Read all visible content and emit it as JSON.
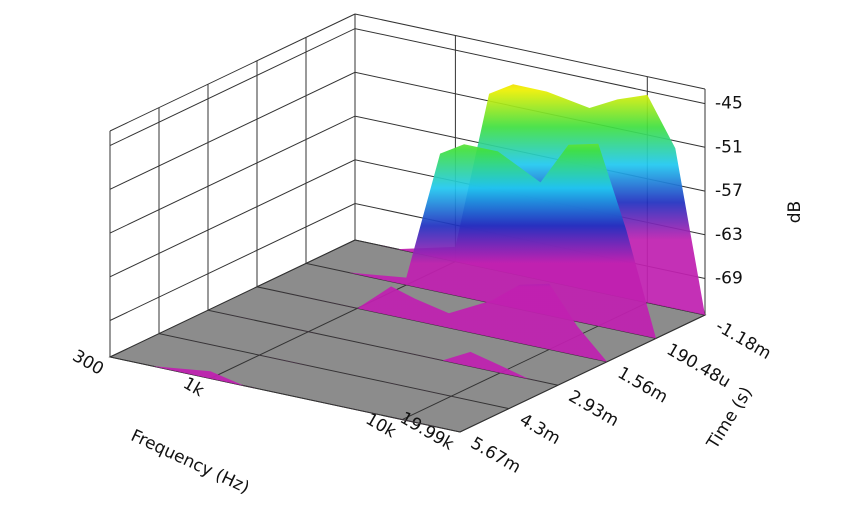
{
  "chart_data": {
    "type": "waterfall3d",
    "x_label": "Frequency (Hz)",
    "y_label": "Time (s)",
    "z_label": "dB",
    "xscale": "log",
    "xlim": [
      300,
      19990
    ],
    "xticks": [
      300,
      {
        "value": 1000,
        "label": "1k"
      },
      {
        "value": 10000,
        "label": "10k"
      },
      {
        "value": 19990,
        "label": "19.99k"
      }
    ],
    "ylim": [
      -0.00118,
      0.00567
    ],
    "yticks": [
      {
        "value": -0.00118,
        "label": "-1.18m"
      },
      {
        "value": 0.00019048,
        "label": "190.48u"
      },
      {
        "value": 0.00156,
        "label": "1.56m"
      },
      {
        "value": 0.00293,
        "label": "2.93m"
      },
      {
        "value": 0.0043,
        "label": "4.3m"
      },
      {
        "value": 0.00567,
        "label": "5.67m"
      }
    ],
    "zlim": [
      -74,
      -43
    ],
    "zticks": [
      -45,
      -51,
      -57,
      -63,
      -69
    ],
    "floor_color": "#8c8c8c",
    "colors": [
      "#c020b0",
      "#2030c0",
      "#20c8f0",
      "#40e040",
      "#f0f000",
      "#f08000",
      "#f00000"
    ],
    "x": [
      300,
      500,
      1000,
      1500,
      2000,
      3000,
      5000,
      7000,
      10000,
      14000,
      19990
    ],
    "slices": [
      {
        "t": -0.00118,
        "values": [
          -74,
          -74,
          -72,
          -50,
          -48,
          -48,
          -49,
          -47,
          -45.5,
          -52,
          -74
        ]
      },
      {
        "t": 0.00019048,
        "values": [
          -74,
          -74,
          -73,
          -55,
          -53,
          -53,
          -56,
          -50,
          -49,
          -60,
          -74
        ]
      },
      {
        "t": 0.00156,
        "values": [
          -74,
          -74,
          -74,
          -70,
          -71,
          -72,
          -69,
          -66,
          -65,
          -70,
          -74
        ]
      },
      {
        "t": 0.00293,
        "values": [
          -74,
          -74,
          -74,
          -74,
          -74,
          -74,
          -74,
          -72,
          -73,
          -74,
          -74
        ]
      },
      {
        "t": 0.0043,
        "values": [
          -74,
          -74,
          -74,
          -74,
          -74,
          -74,
          -74,
          -74,
          -74,
          -74,
          -74
        ]
      },
      {
        "t": 0.00567,
        "values": [
          -74,
          -74,
          -73,
          -74,
          -74,
          -74,
          -74,
          -74,
          -74,
          -74,
          -74
        ]
      }
    ]
  }
}
